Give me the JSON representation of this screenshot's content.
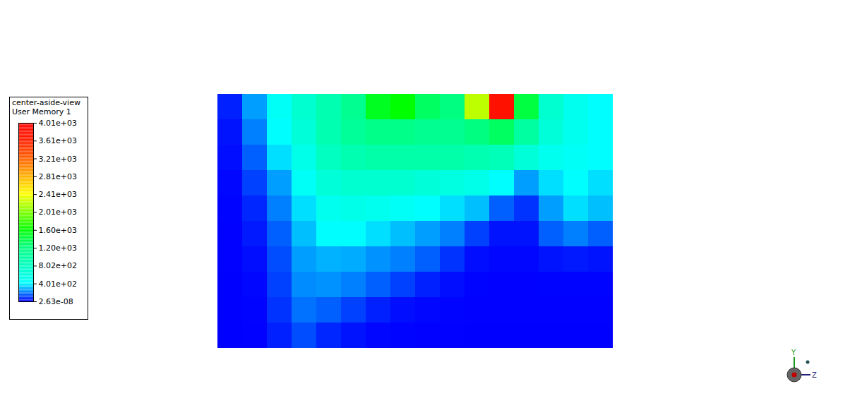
{
  "chart_data": {
    "type": "heatmap",
    "title": "center-aside-view",
    "subtitle": "User Memory 1",
    "xlabel": "Z",
    "ylabel": "Y",
    "tick_labels": false,
    "cells": [
      [
        50,
        250,
        450,
        700,
        900,
        1100,
        1500,
        1600,
        1300,
        1200,
        2200,
        3800,
        1400,
        700,
        500,
        400
      ],
      [
        30,
        200,
        400,
        650,
        900,
        1050,
        1150,
        1150,
        1100,
        1100,
        1200,
        1300,
        1000,
        650,
        500,
        400
      ],
      [
        20,
        150,
        350,
        550,
        800,
        900,
        950,
        950,
        950,
        950,
        900,
        850,
        650,
        500,
        450,
        400
      ],
      [
        10,
        100,
        250,
        450,
        650,
        700,
        700,
        700,
        650,
        600,
        550,
        400,
        250,
        350,
        400,
        350
      ],
      [
        5,
        60,
        200,
        350,
        500,
        550,
        500,
        450,
        400,
        350,
        300,
        150,
        80,
        250,
        350,
        300
      ],
      [
        2,
        40,
        150,
        300,
        400,
        400,
        350,
        300,
        250,
        200,
        100,
        30,
        30,
        150,
        200,
        150
      ],
      [
        1,
        20,
        120,
        250,
        280,
        270,
        230,
        200,
        150,
        80,
        20,
        10,
        10,
        30,
        40,
        30
      ],
      [
        0,
        10,
        100,
        220,
        230,
        200,
        150,
        100,
        50,
        20,
        5,
        2,
        2,
        5,
        5,
        5
      ],
      [
        0,
        5,
        80,
        180,
        150,
        100,
        50,
        20,
        10,
        5,
        2,
        1,
        1,
        1,
        1,
        1
      ],
      [
        0,
        2,
        50,
        120,
        60,
        30,
        10,
        5,
        2,
        1,
        0,
        0,
        0,
        0,
        0,
        0
      ]
    ],
    "colorbar_range": [
      2.63e-08,
      4010
    ],
    "colorbar_ticks": [
      {
        "value": 2.63e-08,
        "label": "2.63e-08"
      },
      {
        "value": 401,
        "label": "4.01e+02"
      },
      {
        "value": 802,
        "label": "8.02e+02"
      },
      {
        "value": 1203,
        "label": "1.20e+03"
      },
      {
        "value": 1604,
        "label": "1.60e+03"
      },
      {
        "value": 2006,
        "label": "2.01e+03"
      },
      {
        "value": 2407,
        "label": "2.41e+03"
      },
      {
        "value": 2808,
        "label": "2.81e+03"
      },
      {
        "value": 3209,
        "label": "3.21e+03"
      },
      {
        "value": 3610,
        "label": "3.61e+03"
      },
      {
        "value": 4010,
        "label": "4.01e+03"
      }
    ]
  }
}
